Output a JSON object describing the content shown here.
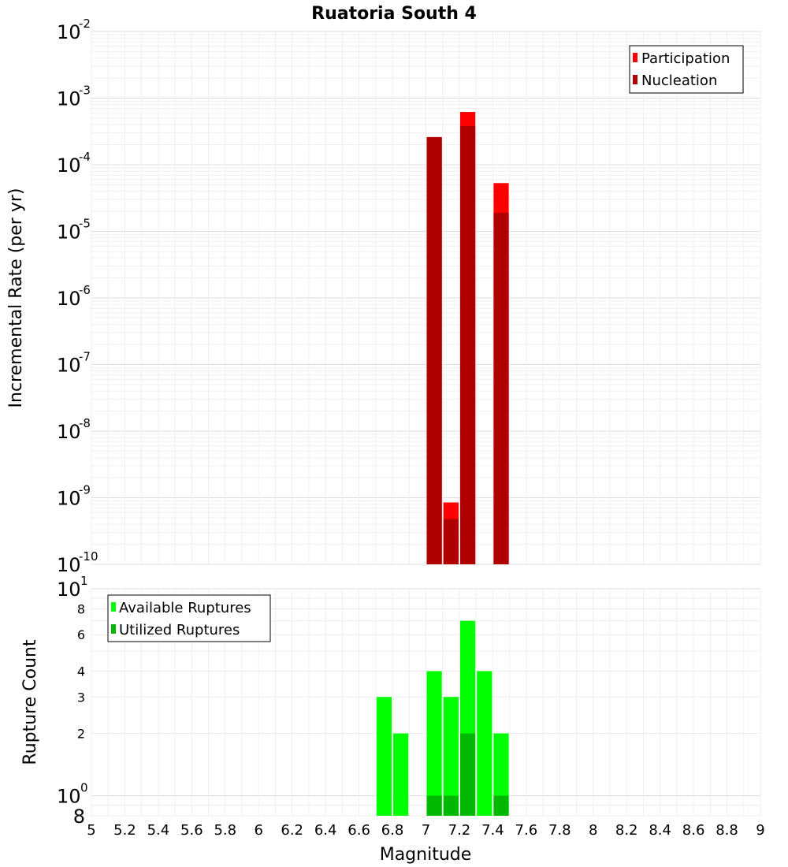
{
  "chart_data": [
    {
      "type": "bar",
      "title": "Ruatoria South 4",
      "xlabel": "Magnitude",
      "ylabel": "Incremental Rate (per yr)",
      "yscale": "log",
      "ylim": [
        1e-10,
        0.01
      ],
      "xlim": [
        5,
        9
      ],
      "bin_width": 0.1,
      "y_ticks": [
        {
          "base": "10",
          "exp": "-10"
        },
        {
          "base": "10",
          "exp": "-9"
        },
        {
          "base": "10",
          "exp": "-8"
        },
        {
          "base": "10",
          "exp": "-7"
        },
        {
          "base": "10",
          "exp": "-6"
        },
        {
          "base": "10",
          "exp": "-5"
        },
        {
          "base": "10",
          "exp": "-4"
        },
        {
          "base": "10",
          "exp": "-3"
        },
        {
          "base": "10",
          "exp": "-2"
        }
      ],
      "legend_position": "top-right",
      "series": [
        {
          "name": "Participation",
          "color": "#ff0000",
          "x": [
            7.05,
            7.15,
            7.25,
            7.45
          ],
          "values": [
            0.00026,
            8.5e-10,
            0.00062,
            5.3e-05
          ]
        },
        {
          "name": "Nucleation",
          "color": "#b00000",
          "x": [
            7.05,
            7.15,
            7.25,
            7.45
          ],
          "values": [
            0.00026,
            4.8e-10,
            0.00038,
            1.9e-05
          ]
        }
      ]
    },
    {
      "type": "bar",
      "xlabel": "Magnitude",
      "ylabel": "Rupture Count",
      "yscale": "log",
      "ylim": [
        0.8,
        10
      ],
      "xlim": [
        5,
        9
      ],
      "bin_width": 0.1,
      "y_ticks": [
        {
          "value": 8,
          "label": "8"
        },
        {
          "value": 6,
          "label": "6"
        },
        {
          "value": 4,
          "label": "4"
        },
        {
          "value": 3,
          "label": "3"
        },
        {
          "value": 2,
          "label": "2"
        }
      ],
      "y_major_ticks": [
        {
          "value": 10,
          "base": "10",
          "exp": "1"
        },
        {
          "value": 1,
          "base": "10",
          "exp": "0"
        }
      ],
      "y_bottom_label": "8",
      "x_ticks": [
        "5",
        "5.2",
        "5.4",
        "5.6",
        "5.8",
        "6",
        "6.2",
        "6.4",
        "6.6",
        "6.8",
        "7",
        "7.2",
        "7.4",
        "7.6",
        "7.8",
        "8",
        "8.2",
        "8.4",
        "8.6",
        "8.8",
        "9"
      ],
      "legend_position": "top-left",
      "series": [
        {
          "name": "Available Ruptures",
          "color": "#00ff00",
          "x": [
            6.75,
            6.85,
            7.05,
            7.15,
            7.25,
            7.35,
            7.45
          ],
          "values": [
            3,
            2,
            4,
            3,
            7,
            4,
            2
          ]
        },
        {
          "name": "Utilized Ruptures",
          "color": "#00b800",
          "x": [
            7.05,
            7.15,
            7.25,
            7.45
          ],
          "values": [
            1,
            1,
            2,
            1
          ]
        }
      ]
    }
  ]
}
